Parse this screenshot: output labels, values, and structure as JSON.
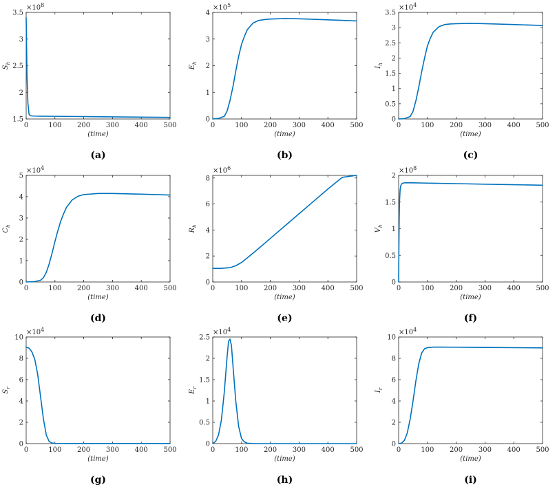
{
  "curve_color": "#0072BD",
  "chart_data": [
    {
      "type": "line",
      "panel": "(a)",
      "caption": "(a)",
      "ylabel": "S",
      "ylabel_sub": "h",
      "xlabel": "(time)",
      "exponent": "8",
      "xlim": [
        0,
        500
      ],
      "ylim": [
        1.5,
        3.5
      ],
      "xticks": [
        "0",
        "100",
        "200",
        "300",
        "400",
        "500"
      ],
      "yticks": [
        "1.5",
        "2",
        "2.5",
        "3",
        "3.5"
      ],
      "x": [
        0,
        1,
        3,
        6,
        10,
        15,
        25,
        50,
        100,
        200,
        300,
        400,
        500
      ],
      "y": [
        3.4,
        3.0,
        2.3,
        1.8,
        1.59,
        1.56,
        1.555,
        1.552,
        1.55,
        1.545,
        1.54,
        1.535,
        1.53
      ]
    },
    {
      "type": "line",
      "panel": "(b)",
      "caption": "(b)",
      "ylabel": "E",
      "ylabel_sub": "h",
      "xlabel": "(time)",
      "exponent": "5",
      "xlim": [
        0,
        500
      ],
      "ylim": [
        0,
        4
      ],
      "xticks": [
        "0",
        "100",
        "200",
        "300",
        "400",
        "500"
      ],
      "yticks": [
        "0",
        "1",
        "2",
        "3",
        "4"
      ],
      "x": [
        0,
        20,
        40,
        50,
        60,
        70,
        80,
        90,
        100,
        110,
        120,
        140,
        160,
        180,
        200,
        250,
        300,
        400,
        500
      ],
      "y": [
        0,
        0.02,
        0.1,
        0.3,
        0.7,
        1.2,
        1.8,
        2.35,
        2.8,
        3.1,
        3.35,
        3.6,
        3.7,
        3.73,
        3.75,
        3.77,
        3.76,
        3.72,
        3.68
      ]
    },
    {
      "type": "line",
      "panel": "(c)",
      "caption": "(c)",
      "ylabel": "I",
      "ylabel_sub": "h",
      "xlabel": "(time)",
      "exponent": "4",
      "xlim": [
        0,
        500
      ],
      "ylim": [
        0,
        3.5
      ],
      "xticks": [
        "0",
        "100",
        "200",
        "300",
        "400",
        "500"
      ],
      "yticks": [
        "0",
        "0.5",
        "1",
        "1.5",
        "2",
        "2.5",
        "3",
        "3.5"
      ],
      "x": [
        0,
        20,
        40,
        50,
        60,
        70,
        80,
        90,
        100,
        110,
        120,
        140,
        160,
        180,
        200,
        250,
        300,
        400,
        500
      ],
      "y": [
        0,
        0.01,
        0.08,
        0.25,
        0.6,
        1.05,
        1.55,
        2.0,
        2.4,
        2.65,
        2.85,
        3.03,
        3.1,
        3.12,
        3.13,
        3.14,
        3.13,
        3.1,
        3.07
      ]
    },
    {
      "type": "line",
      "panel": "(d)",
      "caption": "(d)",
      "ylabel": "C",
      "ylabel_sub": "h",
      "xlabel": "(time)",
      "exponent": "4",
      "xlim": [
        0,
        500
      ],
      "ylim": [
        0,
        5
      ],
      "xticks": [
        "0",
        "100",
        "200",
        "300",
        "400",
        "500"
      ],
      "yticks": [
        "0",
        "1",
        "2",
        "3",
        "4",
        "5"
      ],
      "x": [
        0,
        30,
        50,
        60,
        70,
        80,
        90,
        100,
        110,
        120,
        130,
        140,
        160,
        180,
        200,
        250,
        300,
        400,
        500
      ],
      "y": [
        0,
        0.02,
        0.08,
        0.2,
        0.45,
        0.85,
        1.35,
        1.9,
        2.4,
        2.85,
        3.2,
        3.5,
        3.85,
        4.02,
        4.1,
        4.15,
        4.15,
        4.12,
        4.08
      ]
    },
    {
      "type": "line",
      "panel": "(e)",
      "caption": "(e)",
      "ylabel": "R",
      "ylabel_sub": "h",
      "xlabel": "(time)",
      "exponent": "6",
      "xlim": [
        0,
        500
      ],
      "ylim": [
        0,
        8.2
      ],
      "xticks": [
        "0",
        "100",
        "200",
        "300",
        "400",
        "500"
      ],
      "yticks": [
        "0",
        "2",
        "4",
        "6",
        "8"
      ],
      "x": [
        0,
        30,
        60,
        80,
        100,
        120,
        150,
        200,
        250,
        300,
        350,
        400,
        450,
        500
      ],
      "y": [
        1.05,
        1.05,
        1.1,
        1.25,
        1.5,
        1.85,
        2.4,
        3.35,
        4.3,
        5.25,
        6.2,
        7.15,
        8.05,
        8.2
      ]
    },
    {
      "type": "line",
      "panel": "(f)",
      "caption": "(f)",
      "ylabel": "V",
      "ylabel_sub": "h",
      "xlabel": "(time)",
      "exponent": "8",
      "xlim": [
        0,
        500
      ],
      "ylim": [
        0,
        2
      ],
      "xticks": [
        "0",
        "100",
        "200",
        "300",
        "400",
        "500"
      ],
      "yticks": [
        "0",
        "0.5",
        "1",
        "1.5",
        "2"
      ],
      "x": [
        0,
        1,
        2,
        3,
        5,
        7,
        10,
        15,
        20,
        50,
        100,
        200,
        300,
        400,
        500
      ],
      "y": [
        0,
        0.7,
        1.2,
        1.5,
        1.72,
        1.8,
        1.84,
        1.855,
        1.86,
        1.86,
        1.855,
        1.845,
        1.835,
        1.825,
        1.815
      ]
    },
    {
      "type": "line",
      "panel": "(g)",
      "caption": "(g)",
      "ylabel": "S",
      "ylabel_sub": "r",
      "xlabel": "(time)",
      "exponent": "4",
      "xlim": [
        0,
        500
      ],
      "ylim": [
        0,
        10
      ],
      "xticks": [
        "0",
        "100",
        "200",
        "300",
        "400",
        "500"
      ],
      "yticks": [
        "0",
        "2",
        "4",
        "6",
        "8",
        "10"
      ],
      "x": [
        0,
        10,
        20,
        30,
        40,
        50,
        60,
        70,
        80,
        90,
        100,
        150,
        200,
        300,
        400,
        500
      ],
      "y": [
        9.05,
        8.95,
        8.6,
        7.9,
        6.5,
        4.4,
        2.3,
        0.8,
        0.2,
        0.05,
        0.02,
        0.01,
        0.01,
        0.01,
        0.01,
        0.01
      ]
    },
    {
      "type": "line",
      "panel": "(h)",
      "caption": "(h)",
      "ylabel": "E",
      "ylabel_sub": "r",
      "xlabel": "(time)",
      "exponent": "4",
      "xlim": [
        0,
        500
      ],
      "ylim": [
        0,
        2.5
      ],
      "xticks": [
        "0",
        "100",
        "200",
        "300",
        "400",
        "500"
      ],
      "yticks": [
        "0",
        "0.5",
        "1",
        "1.5",
        "2",
        "2.5"
      ],
      "x": [
        0,
        10,
        20,
        30,
        40,
        50,
        55,
        60,
        65,
        70,
        80,
        90,
        100,
        110,
        120,
        150,
        200,
        300,
        400,
        500
      ],
      "y": [
        0,
        0.05,
        0.2,
        0.55,
        1.2,
        2.05,
        2.4,
        2.45,
        2.3,
        1.85,
        1.0,
        0.4,
        0.12,
        0.04,
        0.01,
        0,
        0,
        0,
        0,
        0
      ]
    },
    {
      "type": "line",
      "panel": "(i)",
      "caption": "(i)",
      "ylabel": "I",
      "ylabel_sub": "r",
      "xlabel": "(time)",
      "exponent": "4",
      "xlim": [
        0,
        500
      ],
      "ylim": [
        0,
        10
      ],
      "xticks": [
        "0",
        "100",
        "200",
        "300",
        "400",
        "500"
      ],
      "yticks": [
        "0",
        "2",
        "4",
        "6",
        "8",
        "10"
      ],
      "x": [
        0,
        10,
        20,
        30,
        40,
        50,
        60,
        70,
        80,
        90,
        100,
        120,
        150,
        200,
        300,
        400,
        500
      ],
      "y": [
        0,
        0.05,
        0.3,
        1.0,
        2.3,
        4.0,
        5.9,
        7.5,
        8.5,
        8.9,
        9.0,
        9.05,
        9.05,
        9.04,
        9.02,
        9.0,
        8.98
      ]
    }
  ]
}
